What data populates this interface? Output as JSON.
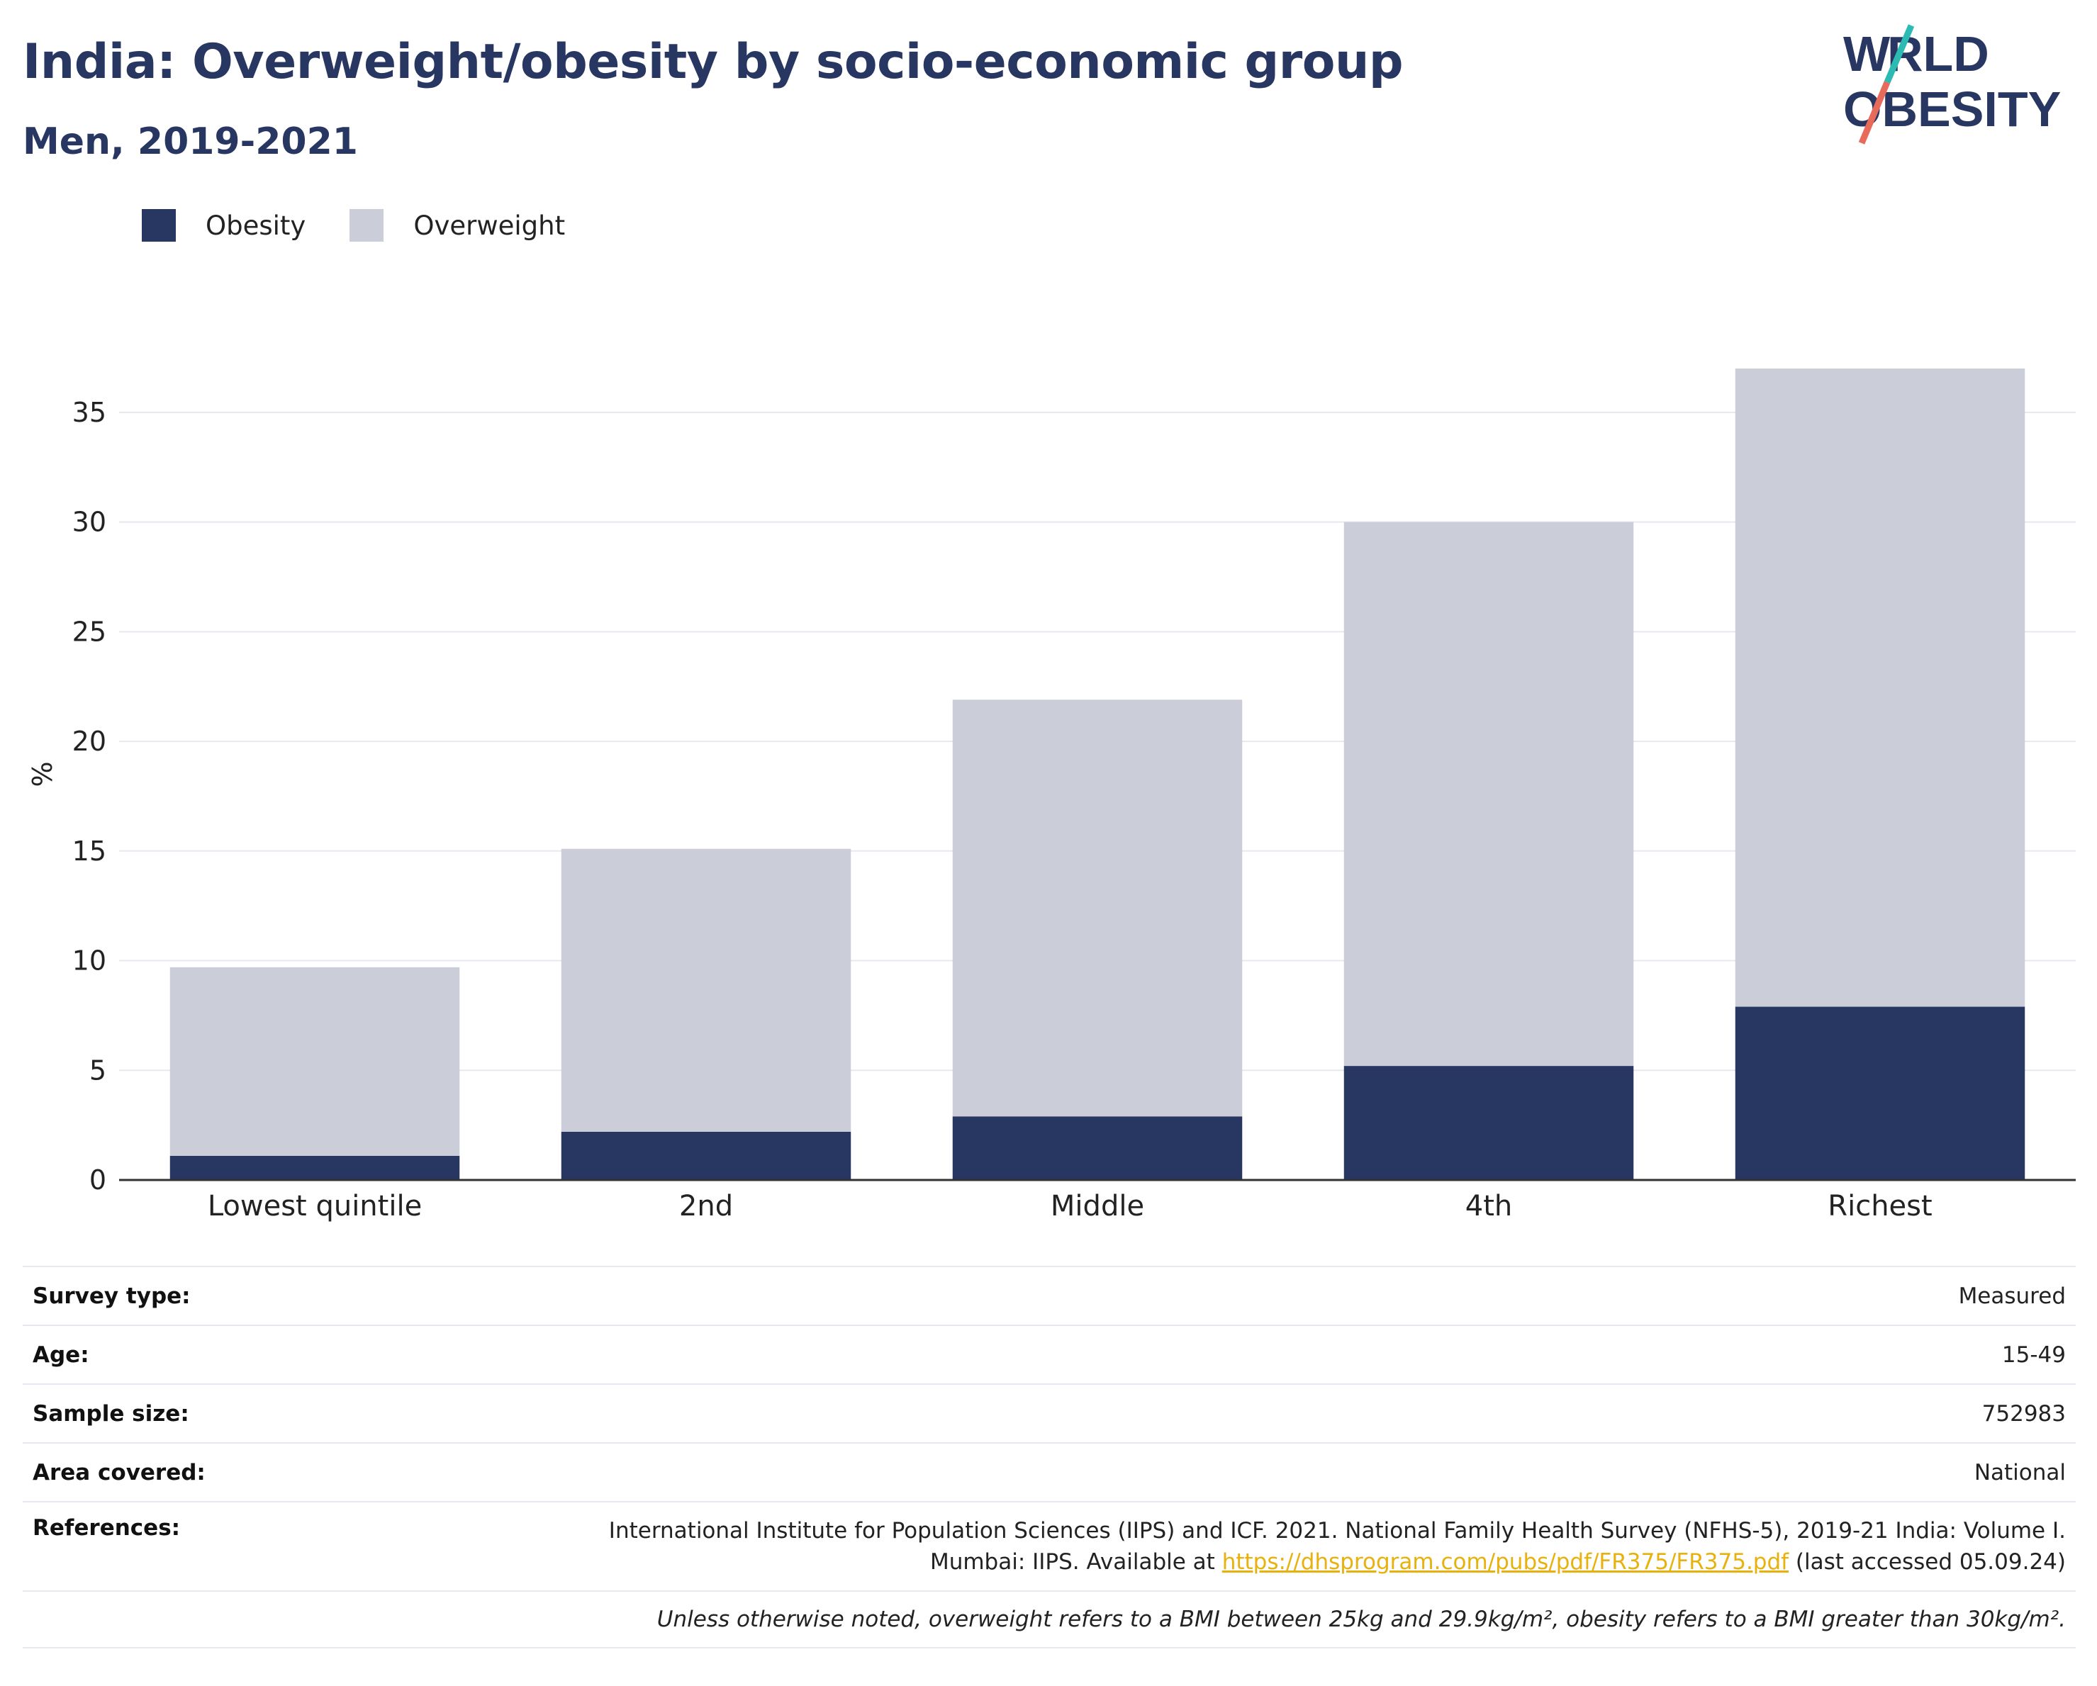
{
  "header": {
    "title": "India: Overweight/obesity by socio-economic group",
    "subtitle": "Men, 2019-2021"
  },
  "logo": {
    "line1": "WORLD",
    "line2": "OBESITY"
  },
  "legend": [
    {
      "label": "Obesity",
      "color": "#283662"
    },
    {
      "label": "Overweight",
      "color": "#cbcdd8"
    }
  ],
  "chart_data": {
    "type": "bar",
    "stacked": true,
    "categories": [
      "Lowest quintile",
      "2nd",
      "Middle",
      "4th",
      "Richest"
    ],
    "series": [
      {
        "name": "Obesity",
        "color": "#283662",
        "values": [
          1.1,
          2.2,
          2.9,
          5.2,
          7.9
        ]
      },
      {
        "name": "Overweight",
        "color": "#cbcdd8",
        "values": [
          8.6,
          12.9,
          19.0,
          24.8,
          29.1
        ]
      }
    ],
    "ylabel": "%",
    "ylim": [
      0,
      37
    ],
    "yticks": [
      0,
      5,
      10,
      15,
      20,
      25,
      30,
      35
    ],
    "grid": true,
    "legend_position": "top-left"
  },
  "info": {
    "survey_type": {
      "label": "Survey type:",
      "value": "Measured"
    },
    "age": {
      "label": "Age:",
      "value": "15-49"
    },
    "sample_size": {
      "label": "Sample size:",
      "value": "752983"
    },
    "area_covered": {
      "label": "Area covered:",
      "value": "National"
    },
    "references": {
      "label": "References:",
      "line1": "International Institute for Population Sciences (IIPS) and ICF. 2021. National Family Health Survey (NFHS-5), 2019-21 India: Volume I.",
      "line2_prefix": "Mumbai: IIPS. Available at ",
      "link": "https://dhsprogram.com/pubs/pdf/FR375/FR375.pdf",
      "line2_suffix": " (last accessed 05.09.24)"
    },
    "note": "Unless otherwise noted, overweight refers to a BMI between 25kg and 29.9kg/m², obesity refers to a BMI greater than 30kg/m²."
  }
}
